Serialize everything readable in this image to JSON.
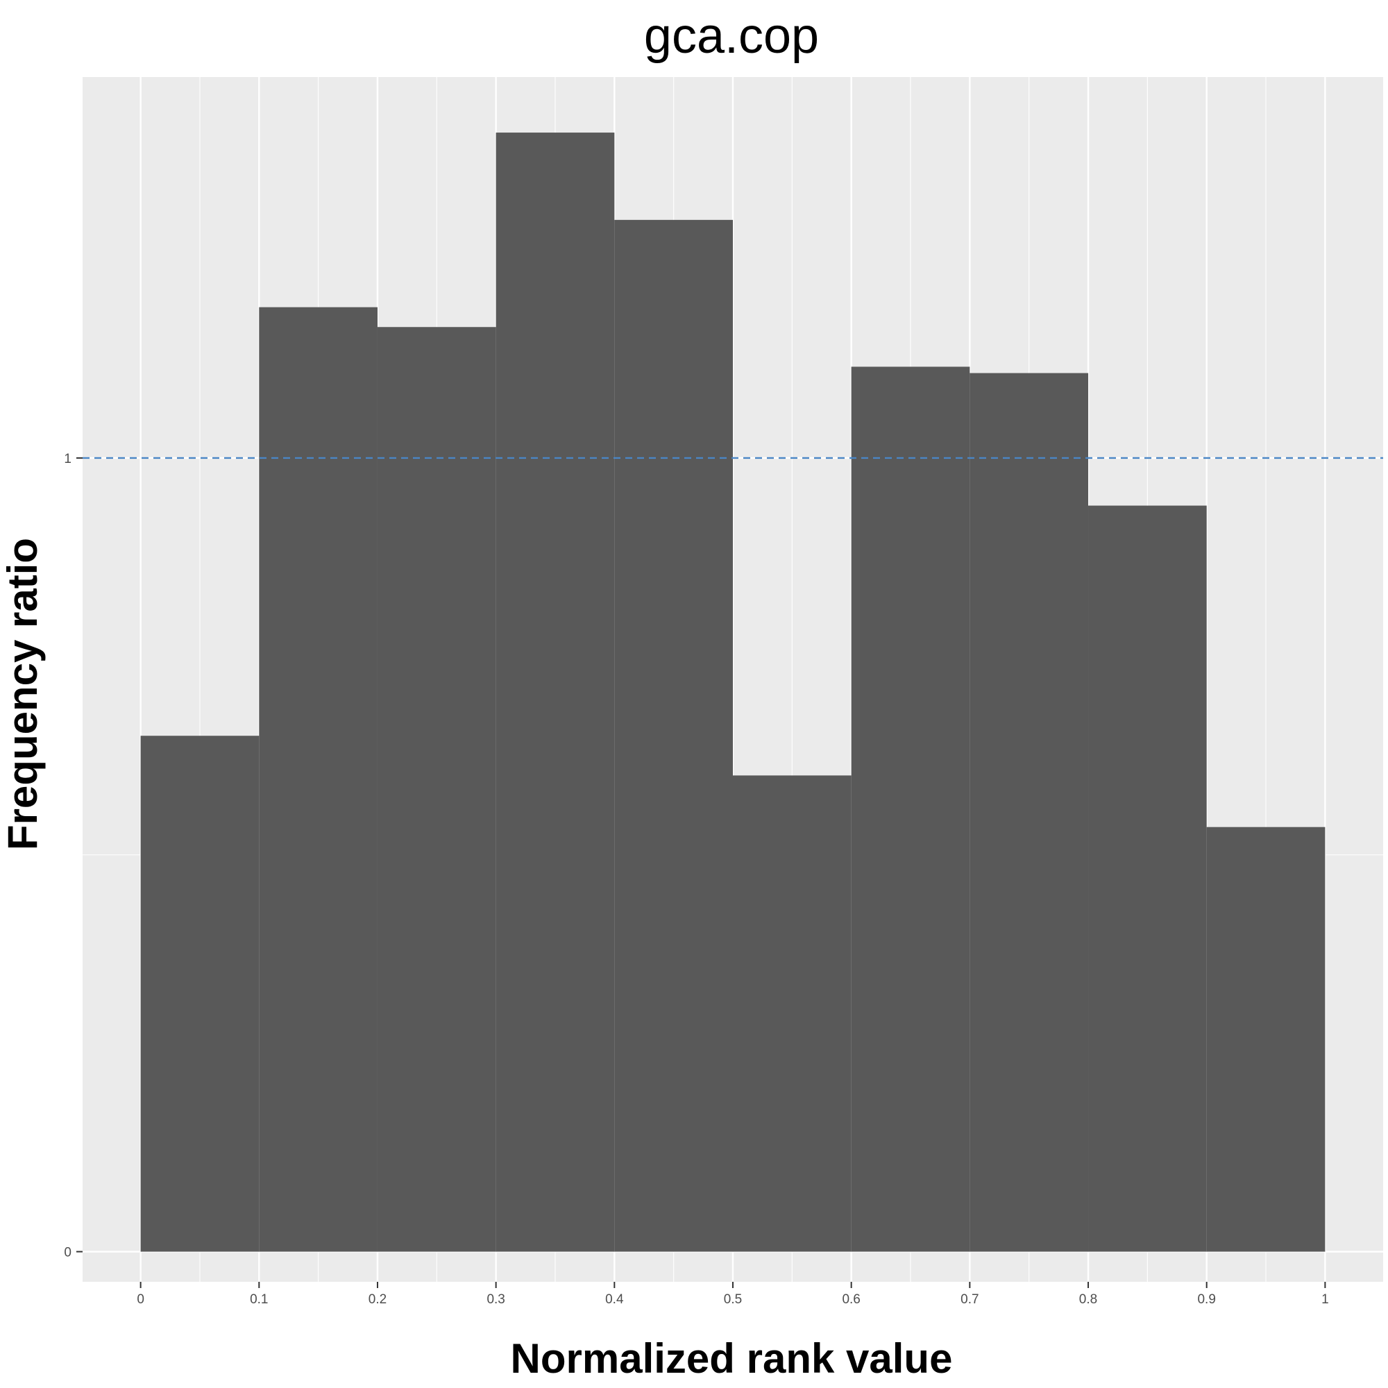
{
  "chart_data": {
    "type": "bar",
    "title": "gca.cop",
    "xlabel": "Normalized rank value",
    "ylabel": "Frequency ratio",
    "x_ticks": [
      "0",
      "0.1",
      "0.2",
      "0.3",
      "0.4",
      "0.5",
      "0.6",
      "0.7",
      "0.8",
      "0.9",
      "1"
    ],
    "y_ticks": [
      "0",
      "1"
    ],
    "bin_width": 0.1,
    "bins": [
      {
        "x0": 0.0,
        "x1": 0.1,
        "value": 0.65
      },
      {
        "x0": 0.1,
        "x1": 0.2,
        "value": 1.19
      },
      {
        "x0": 0.2,
        "x1": 0.3,
        "value": 1.165
      },
      {
        "x0": 0.3,
        "x1": 0.4,
        "value": 1.41
      },
      {
        "x0": 0.4,
        "x1": 0.5,
        "value": 1.3
      },
      {
        "x0": 0.5,
        "x1": 0.6,
        "value": 0.6
      },
      {
        "x0": 0.6,
        "x1": 0.7,
        "value": 1.115
      },
      {
        "x0": 0.7,
        "x1": 0.8,
        "value": 1.107
      },
      {
        "x0": 0.8,
        "x1": 0.9,
        "value": 0.94
      },
      {
        "x0": 0.9,
        "x1": 1.0,
        "value": 0.535
      }
    ],
    "xlim": [
      -0.049,
      1.049
    ],
    "ylim": [
      -0.038,
      1.48
    ],
    "reference_line": {
      "y": 1,
      "style": "dashed",
      "color": "#4a86c5"
    },
    "colors": {
      "bar": "#595959",
      "panel": "#ebebeb",
      "grid": "#ffffff"
    },
    "grid": true
  }
}
